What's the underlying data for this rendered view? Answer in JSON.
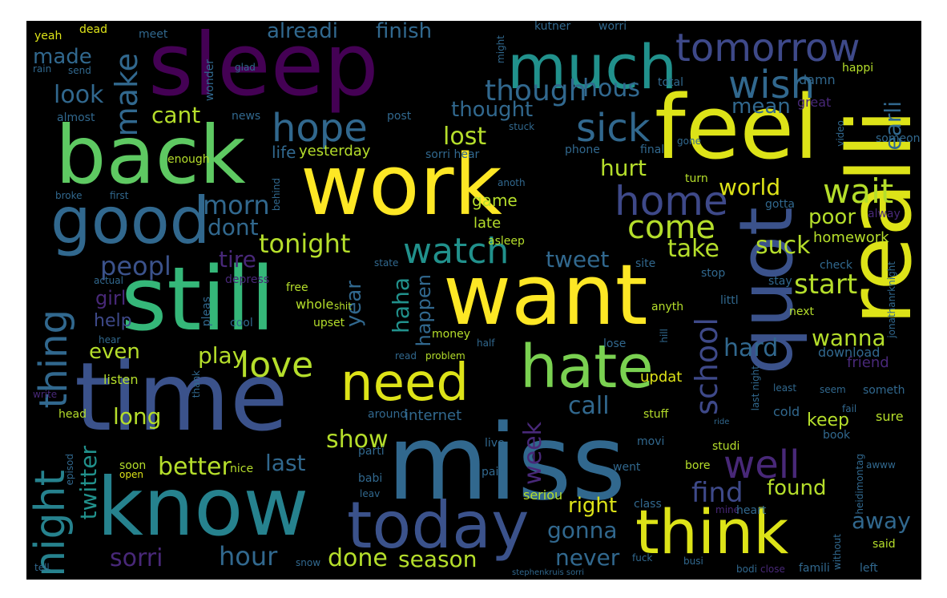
{
  "palette": {
    "purple": "#440154",
    "indigo": "#3b528b",
    "teal": "#21918c",
    "green": "#5ec962",
    "yellow": "#fde725"
  },
  "words": [
    {
      "text": "work",
      "color": "#fde725"
    },
    {
      "text": "time",
      "color": "#3b528b"
    },
    {
      "text": "miss",
      "color": "#31688e"
    },
    {
      "text": "still",
      "color": "#35b779"
    },
    {
      "text": "want",
      "color": "#fde725"
    },
    {
      "text": "sleep",
      "color": "#440154"
    },
    {
      "text": "back",
      "color": "#5ec962"
    },
    {
      "text": "feel",
      "color": "#dde318"
    },
    {
      "text": "know",
      "color": "#26828e"
    },
    {
      "text": "realli",
      "color": "#dde318"
    },
    {
      "text": "quot",
      "color": "#3b528b"
    },
    {
      "text": "good",
      "color": "#31688e"
    },
    {
      "text": "much",
      "color": "#21918c"
    },
    {
      "text": "today",
      "color": "#3b528b"
    },
    {
      "text": "think",
      "color": "#dde318"
    },
    {
      "text": "hate",
      "color": "#7ad151"
    },
    {
      "text": "need",
      "color": "#dde318"
    },
    {
      "text": "tomorrow",
      "color": "#3e4989"
    },
    {
      "text": "wish",
      "color": "#31688e"
    },
    {
      "text": "night",
      "color": "#26828e"
    },
    {
      "text": "thing",
      "color": "#31688e"
    },
    {
      "text": "hope",
      "color": "#31688e"
    },
    {
      "text": "sick",
      "color": "#31688e"
    },
    {
      "text": "home",
      "color": "#3e4989"
    },
    {
      "text": "wait",
      "color": "#b5de2b"
    },
    {
      "text": "well",
      "color": "#482878"
    },
    {
      "text": "love",
      "color": "#b5de2b"
    },
    {
      "text": "watch",
      "color": "#21918c"
    },
    {
      "text": "come",
      "color": "#b5de2b"
    },
    {
      "text": "school",
      "color": "#3e4989"
    },
    {
      "text": "make",
      "color": "#31688e"
    },
    {
      "text": "peopl",
      "color": "#3b528b"
    },
    {
      "text": "though",
      "color": "#31688e"
    },
    {
      "text": "morn",
      "color": "#31688e"
    },
    {
      "text": "tonight",
      "color": "#b5de2b"
    },
    {
      "text": "hour",
      "color": "#31688e"
    },
    {
      "text": "sorri",
      "color": "#482878"
    },
    {
      "text": "twitter",
      "color": "#21918c"
    },
    {
      "text": "better",
      "color": "#b5de2b"
    },
    {
      "text": "show",
      "color": "#b5de2b"
    },
    {
      "text": "gonna",
      "color": "#31688e"
    },
    {
      "text": "week",
      "color": "#482878"
    },
    {
      "text": "done",
      "color": "#b5de2b"
    },
    {
      "text": "season",
      "color": "#b5de2b"
    },
    {
      "text": "find",
      "color": "#3e4989"
    },
    {
      "text": "found",
      "color": "#b5de2b"
    },
    {
      "text": "right",
      "color": "#dde318"
    },
    {
      "text": "never",
      "color": "#31688e"
    },
    {
      "text": "away",
      "color": "#31688e"
    },
    {
      "text": "alreadi",
      "color": "#31688e"
    },
    {
      "text": "finish",
      "color": "#31688e"
    },
    {
      "text": "made",
      "color": "#31688e"
    },
    {
      "text": "look",
      "color": "#31688e"
    },
    {
      "text": "cant",
      "color": "#b5de2b"
    },
    {
      "text": "lost",
      "color": "#b5de2b"
    },
    {
      "text": "hous",
      "color": "#31688e"
    },
    {
      "text": "thought",
      "color": "#31688e"
    },
    {
      "text": "earli",
      "color": "#31688e"
    },
    {
      "text": "mean",
      "color": "#31688e"
    },
    {
      "text": "hurt",
      "color": "#b5de2b"
    },
    {
      "text": "world",
      "color": "#dde318"
    },
    {
      "text": "poor",
      "color": "#b5de2b"
    },
    {
      "text": "take",
      "color": "#b5de2b"
    },
    {
      "text": "suck",
      "color": "#b5de2b"
    },
    {
      "text": "start",
      "color": "#b5de2b"
    },
    {
      "text": "tweet",
      "color": "#31688e"
    },
    {
      "text": "tire",
      "color": "#482878"
    },
    {
      "text": "dont",
      "color": "#31688e"
    },
    {
      "text": "girl",
      "color": "#482878"
    },
    {
      "text": "help",
      "color": "#3e4989"
    },
    {
      "text": "even",
      "color": "#b5de2b"
    },
    {
      "text": "play",
      "color": "#b5de2b"
    },
    {
      "text": "long",
      "color": "#b5de2b"
    },
    {
      "text": "last",
      "color": "#31688e"
    },
    {
      "text": "call",
      "color": "#31688e"
    },
    {
      "text": "hard",
      "color": "#31688e"
    },
    {
      "text": "wanna",
      "color": "#b5de2b"
    },
    {
      "text": "haha",
      "color": "#21918c"
    },
    {
      "text": "year",
      "color": "#31688e"
    },
    {
      "text": "happen",
      "color": "#31688e"
    },
    {
      "text": "yesterday",
      "color": "#b5de2b"
    },
    {
      "text": "life",
      "color": "#31688e"
    },
    {
      "text": "game",
      "color": "#b5de2b"
    },
    {
      "text": "late",
      "color": "#b5de2b"
    },
    {
      "text": "updat",
      "color": "#dde318"
    },
    {
      "text": "internet",
      "color": "#31688e"
    },
    {
      "text": "keep",
      "color": "#b5de2b"
    },
    {
      "text": "homework",
      "color": "#b5de2b"
    },
    {
      "text": "yeah",
      "color": "#dde318"
    },
    {
      "text": "dead",
      "color": "#dde318"
    },
    {
      "text": "meet",
      "color": "#31688e"
    },
    {
      "text": "glad",
      "color": "#31688e"
    },
    {
      "text": "happi",
      "color": "#b5de2b"
    },
    {
      "text": "total",
      "color": "#31688e"
    },
    {
      "text": "damn",
      "color": "#31688e"
    },
    {
      "text": "great",
      "color": "#482878"
    },
    {
      "text": "send",
      "color": "#31688e"
    },
    {
      "text": "rain",
      "color": "#31688e"
    },
    {
      "text": "wonder",
      "color": "#31688e"
    },
    {
      "text": "almost",
      "color": "#31688e"
    },
    {
      "text": "news",
      "color": "#31688e"
    },
    {
      "text": "post",
      "color": "#31688e"
    },
    {
      "text": "stuck",
      "color": "#31688e"
    },
    {
      "text": "gone",
      "color": "#31688e"
    },
    {
      "text": "video",
      "color": "#31688e"
    },
    {
      "text": "phone",
      "color": "#31688e"
    },
    {
      "text": "final",
      "color": "#31688e"
    },
    {
      "text": "enough",
      "color": "#b5de2b"
    },
    {
      "text": "sorri hear",
      "color": "#31688e"
    },
    {
      "text": "someon",
      "color": "#31688e"
    },
    {
      "text": "turn",
      "color": "#b5de2b"
    },
    {
      "text": "first",
      "color": "#31688e"
    },
    {
      "text": "broke",
      "color": "#31688e"
    },
    {
      "text": "behind",
      "color": "#31688e"
    },
    {
      "text": "anoth",
      "color": "#31688e"
    },
    {
      "text": "gotta",
      "color": "#31688e"
    },
    {
      "text": "alway",
      "color": "#482878"
    },
    {
      "text": "asleep",
      "color": "#b5de2b"
    },
    {
      "text": "state",
      "color": "#31688e"
    },
    {
      "text": "site",
      "color": "#31688e"
    },
    {
      "text": "check",
      "color": "#31688e"
    },
    {
      "text": "stop",
      "color": "#31688e"
    },
    {
      "text": "stay",
      "color": "#31688e"
    },
    {
      "text": "depress",
      "color": "#482878"
    },
    {
      "text": "actual",
      "color": "#31688e"
    },
    {
      "text": "free",
      "color": "#b5de2b"
    },
    {
      "text": "whole",
      "color": "#b5de2b"
    },
    {
      "text": "anyth",
      "color": "#b5de2b"
    },
    {
      "text": "littl",
      "color": "#31688e"
    },
    {
      "text": "next",
      "color": "#b5de2b"
    },
    {
      "text": "pleas",
      "color": "#31688e"
    },
    {
      "text": "shit",
      "color": "#b5de2b"
    },
    {
      "text": "upset",
      "color": "#b5de2b"
    },
    {
      "text": "cool",
      "color": "#31688e"
    },
    {
      "text": "hear",
      "color": "#31688e"
    },
    {
      "text": "money",
      "color": "#b5de2b"
    },
    {
      "text": "half",
      "color": "#31688e"
    },
    {
      "text": "lose",
      "color": "#31688e"
    },
    {
      "text": "hill",
      "color": "#31688e"
    },
    {
      "text": "download",
      "color": "#31688e"
    },
    {
      "text": "friend",
      "color": "#482878"
    },
    {
      "text": "read",
      "color": "#31688e"
    },
    {
      "text": "problem",
      "color": "#b5de2b"
    },
    {
      "text": "listen",
      "color": "#b5de2b"
    },
    {
      "text": "thank",
      "color": "#31688e"
    },
    {
      "text": "write",
      "color": "#482878"
    },
    {
      "text": "head",
      "color": "#b5de2b"
    },
    {
      "text": "around",
      "color": "#31688e"
    },
    {
      "text": "stuff",
      "color": "#b5de2b"
    },
    {
      "text": "cold",
      "color": "#31688e"
    },
    {
      "text": "sure",
      "color": "#b5de2b"
    },
    {
      "text": "someth",
      "color": "#31688e"
    },
    {
      "text": "fail",
      "color": "#31688e"
    },
    {
      "text": "ride",
      "color": "#31688e"
    },
    {
      "text": "book",
      "color": "#31688e"
    },
    {
      "text": "soon",
      "color": "#b5de2b"
    },
    {
      "text": "open",
      "color": "#dde318"
    },
    {
      "text": "nice",
      "color": "#b5de2b"
    },
    {
      "text": "episod",
      "color": "#31688e"
    },
    {
      "text": "parti",
      "color": "#31688e"
    },
    {
      "text": "live",
      "color": "#31688e"
    },
    {
      "text": "went",
      "color": "#31688e"
    },
    {
      "text": "movi",
      "color": "#31688e"
    },
    {
      "text": "bore",
      "color": "#b5de2b"
    },
    {
      "text": "studi",
      "color": "#b5de2b"
    },
    {
      "text": "pain",
      "color": "#31688e"
    },
    {
      "text": "babi",
      "color": "#31688e"
    },
    {
      "text": "leav",
      "color": "#31688e"
    },
    {
      "text": "seriou",
      "color": "#b5de2b"
    },
    {
      "text": "class",
      "color": "#31688e"
    },
    {
      "text": "mine",
      "color": "#482878"
    },
    {
      "text": "heart",
      "color": "#31688e"
    },
    {
      "text": "fuck",
      "color": "#31688e"
    },
    {
      "text": "busi",
      "color": "#31688e"
    },
    {
      "text": "bodi",
      "color": "#31688e"
    },
    {
      "text": "close",
      "color": "#482878"
    },
    {
      "text": "famili",
      "color": "#31688e"
    },
    {
      "text": "left",
      "color": "#31688e"
    },
    {
      "text": "said",
      "color": "#b5de2b"
    },
    {
      "text": "without",
      "color": "#31688e"
    },
    {
      "text": "snow",
      "color": "#31688e"
    },
    {
      "text": "tell",
      "color": "#31688e"
    },
    {
      "text": "seem",
      "color": "#31688e"
    },
    {
      "text": "least",
      "color": "#31688e"
    },
    {
      "text": "last night",
      "color": "#31688e"
    },
    {
      "text": "stephenkruis sorri",
      "color": "#31688e"
    },
    {
      "text": "heidimontag",
      "color": "#31688e"
    },
    {
      "text": "awww",
      "color": "#31688e"
    },
    {
      "text": "jonathanrknight",
      "color": "#31688e"
    },
    {
      "text": "kutner",
      "color": "#31688e"
    },
    {
      "text": "worri",
      "color": "#31688e"
    },
    {
      "text": "might",
      "color": "#31688e"
    }
  ]
}
